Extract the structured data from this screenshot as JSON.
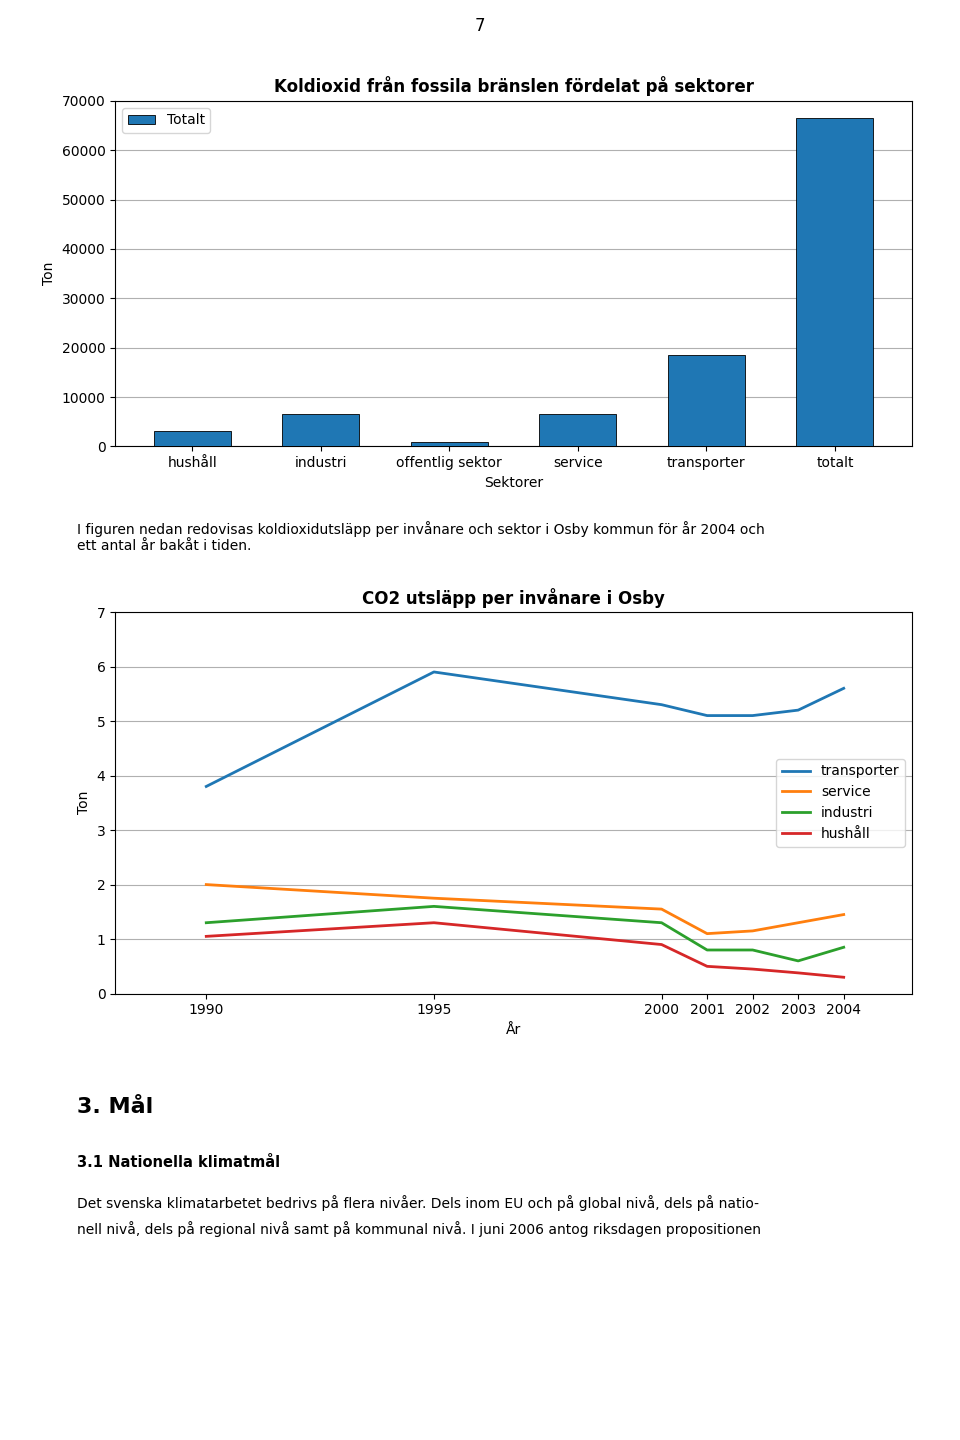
{
  "chart_data": [
    {
      "type": "bar",
      "title": "Koldioxid från fossila bränslen fördelat på sektorer",
      "categories": [
        "hushåll",
        "industri",
        "offentlig sektor",
        "service",
        "transporter",
        "totalt"
      ],
      "series": [
        {
          "name": "Totalt",
          "values": [
            3200,
            6500,
            900,
            6500,
            18500,
            66500
          ]
        }
      ],
      "xlabel": "Sektorer",
      "ylabel": "Ton",
      "ylim": [
        0,
        70000
      ],
      "yticks": [
        0,
        10000,
        20000,
        30000,
        40000,
        50000,
        60000,
        70000
      ],
      "grid": true,
      "legend": "upper left"
    },
    {
      "type": "line",
      "title": "CO2 utsläpp per invånare i Osby",
      "x": [
        1990,
        1995,
        2000,
        2001,
        2002,
        2003,
        2004
      ],
      "series": [
        {
          "name": "transporter",
          "values": [
            3.8,
            5.9,
            5.3,
            5.1,
            5.1,
            5.2,
            5.6
          ]
        },
        {
          "name": "service",
          "values": [
            2.0,
            1.75,
            1.55,
            1.1,
            1.15,
            1.3,
            1.45
          ]
        },
        {
          "name": "industri",
          "values": [
            1.3,
            1.6,
            1.3,
            0.8,
            0.8,
            0.6,
            0.85
          ]
        },
        {
          "name": "hushåll",
          "values": [
            1.05,
            1.3,
            0.9,
            0.5,
            0.45,
            0.38,
            0.3
          ]
        }
      ],
      "xlabel": "År",
      "ylabel": "Ton",
      "xlim": [
        1988,
        2005.5
      ],
      "xticks": [
        1990,
        1995,
        2000,
        2001,
        2002,
        2003,
        2004
      ],
      "ylim": [
        0,
        7
      ],
      "yticks": [
        0,
        1,
        2,
        3,
        4,
        5,
        6,
        7
      ],
      "grid": true,
      "legend": "center right"
    }
  ],
  "annotations": [
    "7",
    "I figuren nedan redovisas koldioxidutsläpp per invånare och sektor i Osby kommun för år 2004 och\nett antal år bakåt i tiden.",
    "3. Mål",
    "3.1 Nationella klimatmål",
    "Det svenska klimatarbetet bedrivs på flera nivåer. Dels inom EU och på global nivå, dels på natio-",
    "nell nivå, dels på regional nivå samt på kommunal nivå. I juni 2006 antog riksdagen propositionen"
  ]
}
